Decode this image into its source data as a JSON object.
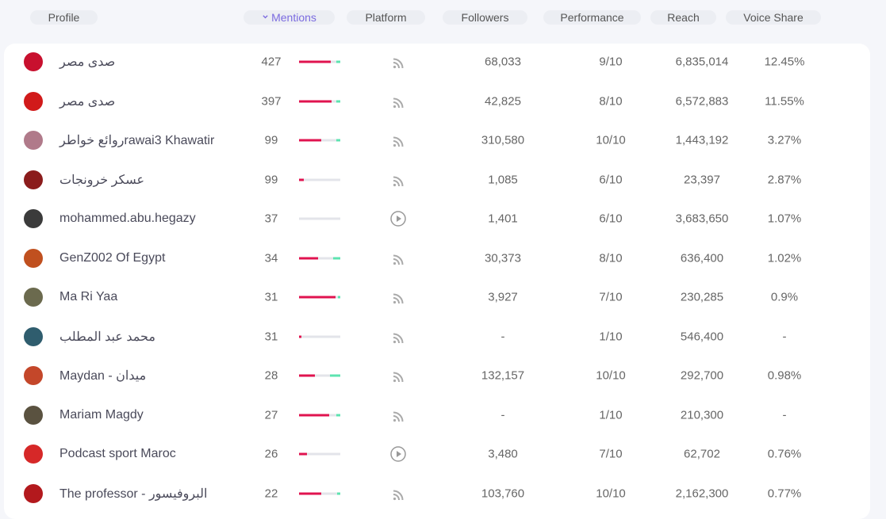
{
  "header": {
    "columns": [
      "Profile",
      "Mentions",
      "Platform",
      "Followers",
      "Performance",
      "Reach",
      "Voice Share"
    ],
    "sorted_column": 1
  },
  "table": {
    "rows": [
      {
        "name": "صدى مصر",
        "avatar_color": "#c8102e",
        "mentions": "427",
        "sentiment": [
          77,
          13,
          10
        ],
        "platform": "rss",
        "followers": "68,033",
        "performance": "9/10",
        "reach": "6,835,014",
        "voice_share": "12.45%"
      },
      {
        "name": "صدى مصر",
        "avatar_color": "#d11a1a",
        "mentions": "397",
        "sentiment": [
          79,
          12,
          9
        ],
        "platform": "rss",
        "followers": "42,825",
        "performance": "8/10",
        "reach": "6,572,883",
        "voice_share": "11.55%"
      },
      {
        "name": "روائع خواطرrawai3 Khawatir",
        "avatar_color": "#b07a8a",
        "mentions": "99",
        "sentiment": [
          54,
          37,
          9
        ],
        "platform": "rss",
        "followers": "310,580",
        "performance": "10/10",
        "reach": "1,443,192",
        "voice_share": "3.27%"
      },
      {
        "name": "عسكر خرونجات",
        "avatar_color": "#8b1c1c",
        "mentions": "99",
        "sentiment": [
          12,
          88,
          0
        ],
        "platform": "rss",
        "followers": "1,085",
        "performance": "6/10",
        "reach": "23,397",
        "voice_share": "2.87%"
      },
      {
        "name": "mohammed.abu.hegazy",
        "avatar_color": "#3b3b3b",
        "mentions": "37",
        "sentiment": [
          0,
          100,
          0
        ],
        "platform": "video",
        "followers": "1,401",
        "performance": "6/10",
        "reach": "3,683,650",
        "voice_share": "1.07%"
      },
      {
        "name": "GenZ002 Of Egypt",
        "avatar_color": "#c0501f",
        "mentions": "34",
        "sentiment": [
          46,
          37,
          17
        ],
        "platform": "rss",
        "followers": "30,373",
        "performance": "8/10",
        "reach": "636,400",
        "voice_share": "1.02%"
      },
      {
        "name": "Ma Ri Yaa",
        "avatar_color": "#6b6a4e",
        "mentions": "31",
        "sentiment": [
          88,
          6,
          6
        ],
        "platform": "rss",
        "followers": "3,927",
        "performance": "7/10",
        "reach": "230,285",
        "voice_share": "0.9%"
      },
      {
        "name": "محمد عبد المطلب",
        "avatar_color": "#2f5d6e",
        "mentions": "31",
        "sentiment": [
          6,
          94,
          0
        ],
        "platform": "rss",
        "followers": "-",
        "performance": "1/10",
        "reach": "546,400",
        "voice_share": "-"
      },
      {
        "name": "Maydan - ميدان",
        "avatar_color": "#c4472a",
        "mentions": "28",
        "sentiment": [
          38,
          37,
          25
        ],
        "platform": "rss",
        "followers": "132,157",
        "performance": "10/10",
        "reach": "292,700",
        "voice_share": "0.98%"
      },
      {
        "name": "Mariam Magdy",
        "avatar_color": "#5a5240",
        "mentions": "27",
        "sentiment": [
          73,
          17,
          10
        ],
        "platform": "rss",
        "followers": "-",
        "performance": "1/10",
        "reach": "210,300",
        "voice_share": "-"
      },
      {
        "name": "Podcast sport Maroc",
        "avatar_color": "#d62828",
        "mentions": "26",
        "sentiment": [
          19,
          81,
          0
        ],
        "platform": "video",
        "followers": "3,480",
        "performance": "7/10",
        "reach": "62,702",
        "voice_share": "0.76%"
      },
      {
        "name": "The professor - البروفيسور",
        "avatar_color": "#b3191d",
        "mentions": "22",
        "sentiment": [
          54,
          38,
          8
        ],
        "platform": "rss",
        "followers": "103,760",
        "performance": "10/10",
        "reach": "2,162,300",
        "voice_share": "0.77%"
      }
    ]
  }
}
